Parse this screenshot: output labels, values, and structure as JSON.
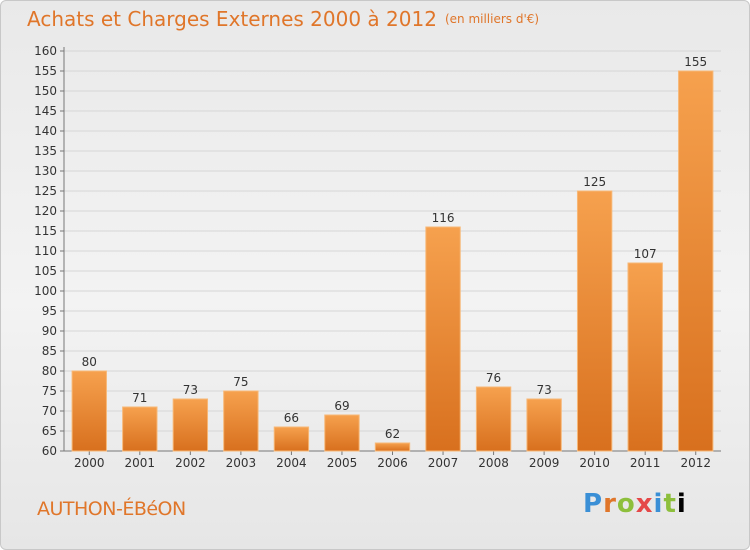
{
  "header": {
    "title": "Achats et Charges Externes 2000 à 2012",
    "unit": "(en milliers d'€)"
  },
  "footer": {
    "commune": "AUTHON-ÉBéON",
    "brand_letters": [
      "P",
      "r",
      "o",
      "x",
      "i",
      "t",
      "i"
    ]
  },
  "colors": {
    "accent": "#e0762a",
    "bar_top": "#f6a14e",
    "bar_bottom": "#d8701e"
  },
  "chart_data": {
    "type": "bar",
    "title": "Achats et Charges Externes 2000 à 2012",
    "subtitle": "(en milliers d'€)",
    "xlabel": "",
    "ylabel": "",
    "categories": [
      "2000",
      "2001",
      "2002",
      "2003",
      "2004",
      "2005",
      "2006",
      "2007",
      "2008",
      "2009",
      "2010",
      "2011",
      "2012"
    ],
    "values": [
      80,
      71,
      73,
      75,
      66,
      69,
      62,
      116,
      76,
      73,
      125,
      107,
      155
    ],
    "ylim": [
      60,
      160
    ],
    "ytick_step": 5,
    "grid": true,
    "data_labels": true
  }
}
